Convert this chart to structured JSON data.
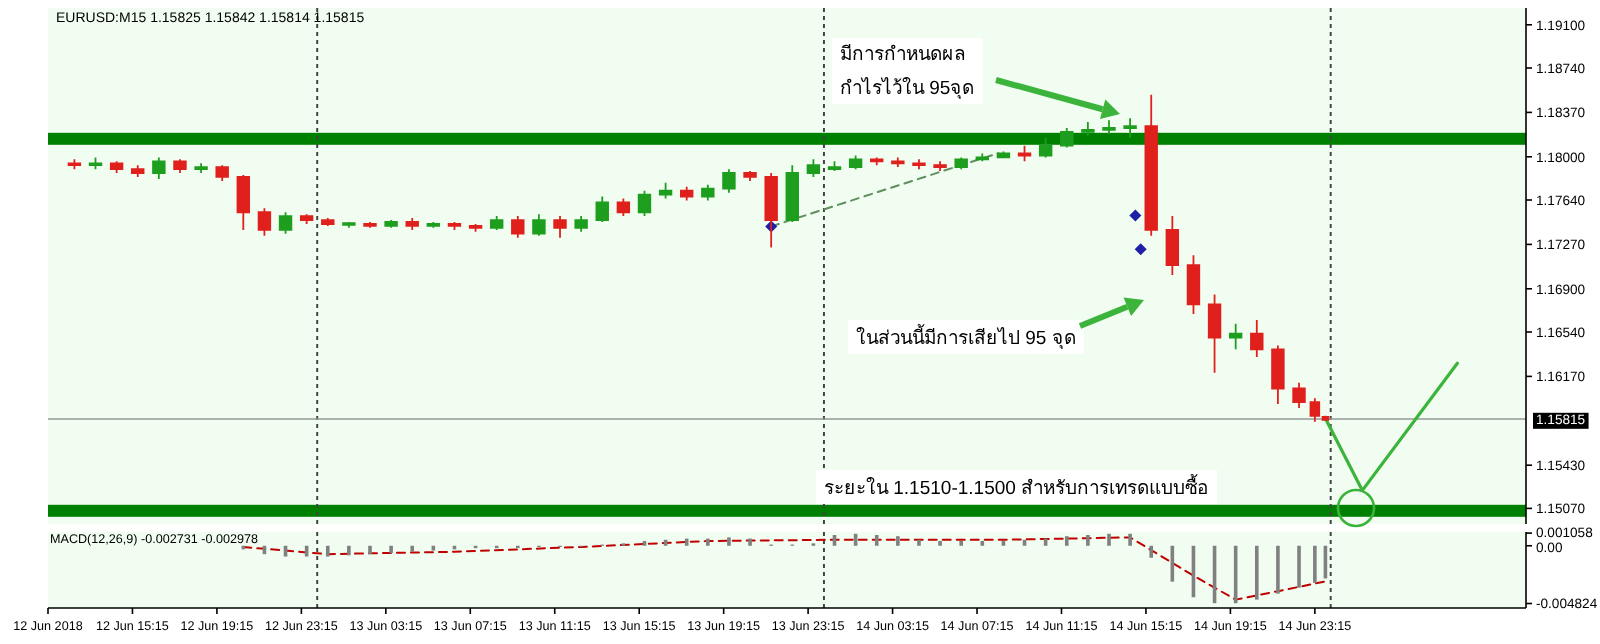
{
  "chart_data": [
    {
      "type": "candlestick",
      "title": "EURUSD:M15 1.15825 1.15842 1.15814 1.15815",
      "x": [
        "2018-06-12T12:30",
        "2018-06-12T13:30",
        "2018-06-12T14:30",
        "2018-06-12T15:30",
        "2018-06-12T16:30",
        "2018-06-12T17:30",
        "2018-06-12T18:30",
        "2018-06-12T19:30",
        "2018-06-12T20:30",
        "2018-06-12T21:30",
        "2018-06-12T22:30",
        "2018-06-12T23:30",
        "2018-06-13T00:30",
        "2018-06-13T01:30",
        "2018-06-13T02:30",
        "2018-06-13T03:30",
        "2018-06-13T04:30",
        "2018-06-13T05:30",
        "2018-06-13T06:30",
        "2018-06-13T07:30",
        "2018-06-13T08:30",
        "2018-06-13T09:30",
        "2018-06-13T10:30",
        "2018-06-13T11:30",
        "2018-06-13T12:30",
        "2018-06-13T13:30",
        "2018-06-13T14:30",
        "2018-06-13T15:30",
        "2018-06-13T16:30",
        "2018-06-13T17:30",
        "2018-06-13T18:30",
        "2018-06-13T19:30",
        "2018-06-13T20:30",
        "2018-06-13T21:30",
        "2018-06-13T22:30",
        "2018-06-13T23:30",
        "2018-06-14T00:30",
        "2018-06-14T01:30",
        "2018-06-14T02:30",
        "2018-06-14T03:30",
        "2018-06-14T04:30",
        "2018-06-14T05:30",
        "2018-06-14T06:30",
        "2018-06-14T07:30",
        "2018-06-14T08:30",
        "2018-06-14T09:30",
        "2018-06-14T10:30",
        "2018-06-14T11:30",
        "2018-06-14T12:30",
        "2018-06-14T13:30",
        "2018-06-14T14:30",
        "2018-06-14T15:30",
        "2018-06-14T16:30",
        "2018-06-14T17:30",
        "2018-06-14T18:30",
        "2018-06-14T19:30",
        "2018-06-14T20:30",
        "2018-06-14T21:30",
        "2018-06-14T22:30",
        "2018-06-14T23:15",
        "2018-06-14T23:45"
      ],
      "ohlc": [
        [
          1.17946,
          1.17979,
          1.17897,
          1.1793
        ],
        [
          1.1793,
          1.17995,
          1.17897,
          1.17946
        ],
        [
          1.17946,
          1.17962,
          1.17865,
          1.17897
        ],
        [
          1.17897,
          1.1793,
          1.17832,
          1.17865
        ],
        [
          1.17865,
          1.17995,
          1.17816,
          1.17962
        ],
        [
          1.17962,
          1.17979,
          1.17865,
          1.17897
        ],
        [
          1.17897,
          1.17946,
          1.17865,
          1.17914
        ],
        [
          1.17914,
          1.1793,
          1.17799,
          1.17832
        ],
        [
          1.17832,
          1.17848,
          1.17391,
          1.17538
        ],
        [
          1.17538,
          1.17571,
          1.17342,
          1.17391
        ],
        [
          1.17391,
          1.17538,
          1.17359,
          1.17506
        ],
        [
          1.17506,
          1.17522,
          1.1744,
          1.17473
        ],
        [
          1.17473,
          1.17489,
          1.17424,
          1.1744
        ],
        [
          1.1744,
          1.17457,
          1.17408,
          1.1744
        ],
        [
          1.1744,
          1.17457,
          1.17408,
          1.17424
        ],
        [
          1.17424,
          1.17473,
          1.17408,
          1.17457
        ],
        [
          1.17457,
          1.17489,
          1.17391,
          1.17424
        ],
        [
          1.17424,
          1.17457,
          1.17408,
          1.1744
        ],
        [
          1.1744,
          1.17457,
          1.17391,
          1.17424
        ],
        [
          1.17424,
          1.1744,
          1.17375,
          1.17408
        ],
        [
          1.17408,
          1.17506,
          1.17391,
          1.17473
        ],
        [
          1.17473,
          1.17506,
          1.17326,
          1.17359
        ],
        [
          1.17359,
          1.17522,
          1.17342,
          1.17473
        ],
        [
          1.17473,
          1.17506,
          1.17326,
          1.17408
        ],
        [
          1.17408,
          1.17506,
          1.17375,
          1.17473
        ],
        [
          1.17473,
          1.17669,
          1.17457,
          1.1762
        ],
        [
          1.1762,
          1.17652,
          1.17506,
          1.17538
        ],
        [
          1.17538,
          1.17718,
          1.17506,
          1.17685
        ],
        [
          1.17685,
          1.17783,
          1.17652,
          1.17718
        ],
        [
          1.17718,
          1.1775,
          1.17636,
          1.17669
        ],
        [
          1.17669,
          1.17767,
          1.17636,
          1.17734
        ],
        [
          1.17734,
          1.17897,
          1.17701,
          1.17865
        ],
        [
          1.17865,
          1.17881,
          1.17799,
          1.17832
        ],
        [
          1.17832,
          1.17865,
          1.17244,
          1.17473
        ],
        [
          1.17473,
          1.1793,
          1.17457,
          1.17865
        ],
        [
          1.17865,
          1.17979,
          1.17832,
          1.1793
        ],
        [
          1.17897,
          1.17962,
          1.17881,
          1.17914
        ],
        [
          1.17914,
          1.18011,
          1.17897,
          1.17979
        ],
        [
          1.17979,
          1.17995,
          1.1793,
          1.17962
        ],
        [
          1.17962,
          1.17995,
          1.17914,
          1.17946
        ],
        [
          1.17946,
          1.17979,
          1.17897,
          1.1793
        ],
        [
          1.1793,
          1.17962,
          1.17881,
          1.17914
        ],
        [
          1.17914,
          1.17995,
          1.17897,
          1.17979
        ],
        [
          1.17979,
          1.18028,
          1.17962,
          1.17995
        ],
        [
          1.17995,
          1.18044,
          1.17995,
          1.18028
        ],
        [
          1.18028,
          1.18093,
          1.17962,
          1.18011
        ],
        [
          1.18011,
          1.18158,
          1.17995,
          1.18093
        ],
        [
          1.18093,
          1.1824,
          1.18077,
          1.18207
        ],
        [
          1.18207,
          1.18289,
          1.18175,
          1.18224
        ],
        [
          1.18224,
          1.18305,
          1.18191,
          1.1824
        ],
        [
          1.1824,
          1.18322,
          1.18158,
          1.18256
        ],
        [
          1.18256,
          1.18517,
          1.17342,
          1.17391
        ],
        [
          1.17391,
          1.17506,
          1.17016,
          1.17097
        ],
        [
          1.17097,
          1.17179,
          1.1669,
          1.16771
        ],
        [
          1.16771,
          1.16853,
          1.162,
          1.16494
        ],
        [
          1.16494,
          1.16608,
          1.16396,
          1.16526
        ],
        [
          1.16526,
          1.16641,
          1.16331,
          1.16396
        ],
        [
          1.16396,
          1.16428,
          1.15939,
          1.16069
        ],
        [
          1.16069,
          1.16118,
          1.15906,
          1.15955
        ],
        [
          1.15955,
          1.15988,
          1.15792,
          1.15841
        ],
        [
          1.15825,
          1.15842,
          1.15814,
          1.15815
        ]
      ],
      "series": [
        {
          "type": "line",
          "x": [
            "2018-06-13T21:30",
            "2018-06-14T08:15"
          ],
          "values": [
            1.1742,
            1.1803
          ],
          "color": "#5f8f5f",
          "line_style": "dashed"
        },
        {
          "type": "line",
          "x": [
            "2018-06-14T23:45",
            "2018-06-15T01:30",
            "2018-06-15T06:00"
          ],
          "values": [
            1.1582,
            1.1522,
            1.1628
          ],
          "color": "#3cb43c"
        },
        {
          "type": "scatter",
          "x": [
            "2018-06-13T21:30",
            "2018-06-14T14:45",
            "2018-06-14T15:00"
          ],
          "values": [
            1.1742,
            1.1751,
            1.1723
          ],
          "color": "#1f1fa8",
          "marker": "diamond"
        }
      ],
      "xlim": [
        "2018-06-12T11:15",
        "2018-06-15T09:15"
      ],
      "ylim": [
        1.1494,
        1.1924
      ],
      "yticks": [
        {
          "value": 1.191,
          "label": "1.19100"
        },
        {
          "value": 1.1874,
          "label": "1.18740"
        },
        {
          "value": 1.1837,
          "label": "1.18370"
        },
        {
          "value": 1.18,
          "label": "1.18000"
        },
        {
          "value": 1.1764,
          "label": "1.17640"
        },
        {
          "value": 1.1727,
          "label": "1.17270"
        },
        {
          "value": 1.169,
          "label": "1.16900"
        },
        {
          "value": 1.1654,
          "label": "1.16540"
        },
        {
          "value": 1.1617,
          "label": "1.16170"
        },
        {
          "value": 1.1543,
          "label": "1.15430"
        },
        {
          "value": 1.1507,
          "label": "1.15070"
        }
      ],
      "tick_labels": "y",
      "bands": [
        {
          "axis": "y",
          "from": 1.181,
          "to": 1.182,
          "color": "#008000"
        },
        {
          "axis": "y",
          "from": 1.15,
          "to": 1.151,
          "color": "#008000"
        }
      ],
      "ref_lines": [
        {
          "axis": "x",
          "value": "2018-06-13",
          "color": "#444444",
          "line_style": "dotted"
        },
        {
          "axis": "x",
          "value": "2018-06-14",
          "color": "#444444",
          "line_style": "dotted"
        },
        {
          "axis": "x",
          "value": "2018-06-15",
          "color": "#444444",
          "line_style": "dotted"
        },
        {
          "axis": "y",
          "value": 1.15815,
          "label": "1.15815",
          "color": "#999999",
          "line_style": "solid"
        }
      ],
      "annotations": [
        "มีการกำหนดผล\nกำไรไว้ใน 95จุด",
        "ในส่วนนี้มีการเสียไป 95 จุด",
        "ระยะใน 1.1510-1.1500 สำหรับการเทรดแบบซื้อ"
      ]
    },
    {
      "type": "bar",
      "title": "MACD(12,26,9) -0.002731 -0.002978",
      "x": [
        "2018-06-12T20:30",
        "2018-06-12T21:30",
        "2018-06-12T22:30",
        "2018-06-12T23:30",
        "2018-06-13T00:30",
        "2018-06-13T01:30",
        "2018-06-13T02:30",
        "2018-06-13T03:30",
        "2018-06-13T04:30",
        "2018-06-13T05:30",
        "2018-06-13T06:30",
        "2018-06-13T07:30",
        "2018-06-13T08:30",
        "2018-06-13T09:30",
        "2018-06-13T10:30",
        "2018-06-13T11:30",
        "2018-06-13T12:30",
        "2018-06-13T13:30",
        "2018-06-13T14:30",
        "2018-06-13T15:30",
        "2018-06-13T16:30",
        "2018-06-13T17:30",
        "2018-06-13T18:30",
        "2018-06-13T19:30",
        "2018-06-13T20:30",
        "2018-06-13T21:30",
        "2018-06-13T22:30",
        "2018-06-13T23:30",
        "2018-06-14T00:30",
        "2018-06-14T01:30",
        "2018-06-14T02:30",
        "2018-06-14T03:30",
        "2018-06-14T04:30",
        "2018-06-14T05:30",
        "2018-06-14T06:30",
        "2018-06-14T07:30",
        "2018-06-14T08:30",
        "2018-06-14T09:30",
        "2018-06-14T10:30",
        "2018-06-14T11:30",
        "2018-06-14T12:30",
        "2018-06-14T13:30",
        "2018-06-14T14:30",
        "2018-06-14T15:30",
        "2018-06-14T16:30",
        "2018-06-14T17:30",
        "2018-06-14T18:30",
        "2018-06-14T19:30",
        "2018-06-14T20:30",
        "2018-06-14T21:30",
        "2018-06-14T22:30",
        "2018-06-14T23:15",
        "2018-06-14T23:45"
      ],
      "series": [
        {
          "color": "#808080",
          "values": [
            -0.0003,
            -0.0007,
            -0.0009,
            -0.0009,
            -0.0009,
            -0.0008,
            -0.0007,
            -0.0006,
            -0.0005,
            -0.0004,
            -0.0003,
            -0.0002,
            -0.0002,
            -0.0002,
            -0.0001,
            -0.0001,
            0,
            0.0001,
            0.0002,
            0.0004,
            0.0005,
            0.0006,
            0.0006,
            0.0007,
            0.0006,
            0.0001,
            0.0001,
            0.0002,
            0.0009,
            0.001,
            0.0009,
            0.0008,
            0.0005,
            0.0004,
            0.0004,
            0.0004,
            0.0004,
            0.0005,
            0.0006,
            0.0008,
            0.0009,
            0.001,
            0.001,
            -0.001,
            -0.003,
            -0.0043,
            -0.0048,
            -0.0048,
            -0.0045,
            -0.004,
            -0.0035,
            -0.0031,
            -0.002731
          ]
        },
        {
          "type": "line",
          "color": "#c00000",
          "line_style": "dashed",
          "x": [
            "2018-06-12T20:30",
            "2018-06-13T00:30",
            "2018-06-13T06:30",
            "2018-06-13T12:30",
            "2018-06-13T18:30",
            "2018-06-14T00:30",
            "2018-06-14T08:30",
            "2018-06-14T14:30",
            "2018-06-14T17:30",
            "2018-06-14T19:30",
            "2018-06-14T21:30",
            "2018-06-14T23:45"
          ],
          "values": [
            -0.0001,
            -0.0007,
            -0.0005,
            -0.0001,
            0.0004,
            0.0005,
            0.0005,
            0.0007,
            -0.0025,
            -0.0045,
            -0.0038,
            -0.002978
          ]
        }
      ],
      "xlim": [
        "2018-06-12T11:15",
        "2018-06-15T09:15"
      ],
      "xticks": [
        {
          "value": "2018-06-12T11:15",
          "label": "12 Jun 2018"
        },
        {
          "value": "2018-06-12T15:15",
          "label": "12 Jun 15:15"
        },
        {
          "value": "2018-06-12T19:15",
          "label": "12 Jun 19:15"
        },
        {
          "value": "2018-06-12T23:15",
          "label": "12 Jun 23:15"
        },
        {
          "value": "2018-06-13T03:15",
          "label": "13 Jun 03:15"
        },
        {
          "value": "2018-06-13T07:15",
          "label": "13 Jun 07:15"
        },
        {
          "value": "2018-06-13T11:15",
          "label": "13 Jun 11:15"
        },
        {
          "value": "2018-06-13T15:15",
          "label": "13 Jun 15:15"
        },
        {
          "value": "2018-06-13T19:15",
          "label": "13 Jun 19:15"
        },
        {
          "value": "2018-06-13T23:15",
          "label": "13 Jun 23:15"
        },
        {
          "value": "2018-06-14T03:15",
          "label": "14 Jun 03:15"
        },
        {
          "value": "2018-06-14T07:15",
          "label": "14 Jun 07:15"
        },
        {
          "value": "2018-06-14T11:15",
          "label": "14 Jun 11:15"
        },
        {
          "value": "2018-06-14T15:15",
          "label": "14 Jun 15:15"
        },
        {
          "value": "2018-06-14T19:15",
          "label": "14 Jun 19:15"
        },
        {
          "value": "2018-06-14T23:15",
          "label": "14 Jun 23:15"
        }
      ],
      "ylim": [
        -0.0052,
        0.00115
      ],
      "yticks": [
        0.001058,
        {
          "value": 0,
          "label": "0.00"
        },
        -0.004824
      ],
      "ref_lines": [
        {
          "axis": "x",
          "value": "2018-06-13",
          "color": "#444444",
          "line_style": "dotted"
        },
        {
          "axis": "x",
          "value": "2018-06-14",
          "color": "#444444",
          "line_style": "dotted"
        },
        {
          "axis": "x",
          "value": "2018-06-15",
          "color": "#444444",
          "line_style": "dotted"
        }
      ]
    }
  ]
}
